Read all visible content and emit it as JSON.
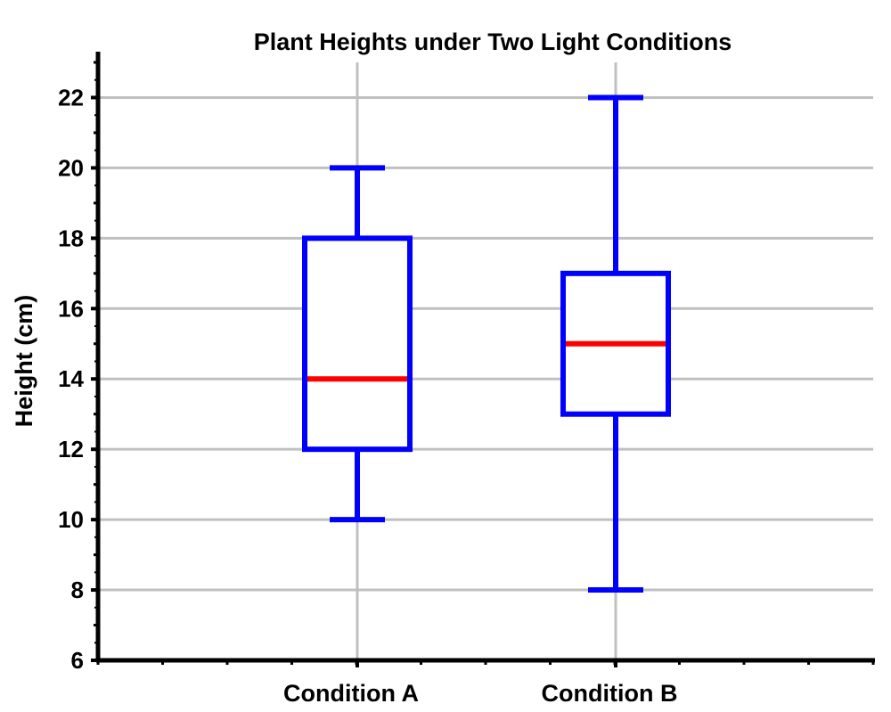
{
  "chart_data": {
    "type": "box",
    "title": "Plant Heights under Two Light Conditions",
    "xlabel": "",
    "ylabel": "Height (cm)",
    "ylim": [
      6,
      23
    ],
    "yticks": [
      "6",
      "8",
      "10",
      "12",
      "14",
      "16",
      "18",
      "20",
      "22"
    ],
    "categories": [
      "Condition A",
      "Condition B"
    ],
    "boxes": [
      {
        "category": "Condition A",
        "min": 10,
        "q1": 12,
        "median": 14,
        "q3": 18,
        "max": 20
      },
      {
        "category": "Condition B",
        "min": 8,
        "q1": 13,
        "median": 15,
        "q3": 17,
        "max": 22
      }
    ],
    "grid": true,
    "colors": {
      "box": "#0000ff",
      "median": "#ff0000",
      "grid": "#c0c0c0",
      "axis": "#000000"
    }
  }
}
